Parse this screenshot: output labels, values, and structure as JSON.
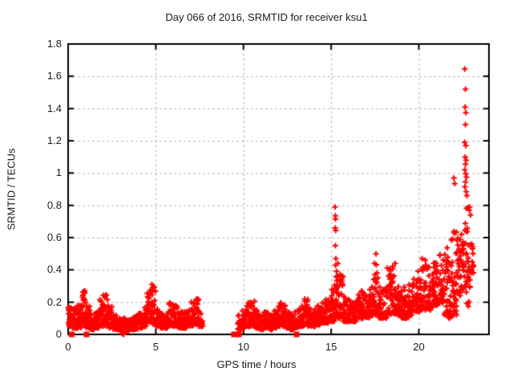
{
  "chart_data": {
    "type": "scatter",
    "title": "Day 066 of 2016, SRMTID for receiver ksu1",
    "xlabel": "GPS time / hours",
    "ylabel": "SRMTID / TECUs",
    "xlim": [
      0,
      24
    ],
    "ylim": [
      0,
      1.8
    ],
    "xticks": [
      0,
      5,
      10,
      15,
      20
    ],
    "xtick_labels": [
      "0",
      "5",
      "10",
      "15",
      "20"
    ],
    "yticks": [
      0,
      0.2,
      0.4,
      0.6,
      0.8,
      1.0,
      1.2,
      1.4,
      1.6,
      1.8
    ],
    "ytick_labels": [
      "0",
      "0.2",
      "0.4",
      "0.6",
      "0.8",
      "1",
      "1.2",
      "1.4",
      "1.6",
      "1.8"
    ],
    "grid": "dashed",
    "legend": "none",
    "marker": "plus",
    "marker_color": "#ff0000",
    "grid_color": "#b4b4b4",
    "border_color": "#000000",
    "text_color": "#1a1a1a",
    "background": "#ffffff",
    "data_gap_hours": [
      7.6,
      9.7
    ],
    "envelope_bins_comment": "each bin: [hour_center, min_SRMTID, max_SRMTID, optional point_count] read from the scatter envelope",
    "envelope_bins": [
      [
        0.125,
        0.05,
        0.17
      ],
      [
        0.375,
        0.04,
        0.16
      ],
      [
        0.625,
        0.04,
        0.18
      ],
      [
        0.875,
        0.05,
        0.27
      ],
      [
        1.125,
        0.04,
        0.18
      ],
      [
        1.375,
        0.03,
        0.13
      ],
      [
        1.625,
        0.04,
        0.14
      ],
      [
        1.875,
        0.05,
        0.22
      ],
      [
        2.125,
        0.05,
        0.25
      ],
      [
        2.375,
        0.04,
        0.18
      ],
      [
        2.625,
        0.03,
        0.12
      ],
      [
        2.875,
        0.03,
        0.1
      ],
      [
        3.125,
        0.02,
        0.1
      ],
      [
        3.375,
        0.02,
        0.09
      ],
      [
        3.625,
        0.03,
        0.1
      ],
      [
        3.875,
        0.03,
        0.11
      ],
      [
        4.125,
        0.04,
        0.13
      ],
      [
        4.375,
        0.05,
        0.17
      ],
      [
        4.625,
        0.07,
        0.28
      ],
      [
        4.875,
        0.06,
        0.3
      ],
      [
        5.125,
        0.05,
        0.16
      ],
      [
        5.375,
        0.04,
        0.13
      ],
      [
        5.625,
        0.04,
        0.14
      ],
      [
        5.875,
        0.05,
        0.2
      ],
      [
        6.125,
        0.05,
        0.18
      ],
      [
        6.375,
        0.04,
        0.14
      ],
      [
        6.625,
        0.04,
        0.14
      ],
      [
        6.875,
        0.05,
        0.15
      ],
      [
        7.125,
        0.05,
        0.2
      ],
      [
        7.375,
        0.06,
        0.22
      ],
      [
        7.55,
        0.05,
        0.13,
        14
      ],
      [
        9.8,
        0.03,
        0.12,
        18
      ],
      [
        10.05,
        0.04,
        0.15
      ],
      [
        10.3,
        0.05,
        0.2
      ],
      [
        10.55,
        0.05,
        0.21
      ],
      [
        10.8,
        0.04,
        0.15
      ],
      [
        11.05,
        0.03,
        0.12
      ],
      [
        11.3,
        0.04,
        0.14
      ],
      [
        11.55,
        0.03,
        0.12
      ],
      [
        11.8,
        0.04,
        0.15
      ],
      [
        12.05,
        0.05,
        0.2
      ],
      [
        12.3,
        0.05,
        0.18
      ],
      [
        12.55,
        0.04,
        0.14
      ],
      [
        12.8,
        0.03,
        0.12
      ],
      [
        13.05,
        0.04,
        0.15
      ],
      [
        13.3,
        0.05,
        0.18
      ],
      [
        13.55,
        0.06,
        0.22
      ],
      [
        13.8,
        0.05,
        0.16
      ],
      [
        14.05,
        0.05,
        0.16
      ],
      [
        14.3,
        0.06,
        0.18
      ],
      [
        14.55,
        0.07,
        0.2
      ],
      [
        14.8,
        0.07,
        0.22
      ],
      [
        15.05,
        0.08,
        0.28
      ],
      [
        15.3,
        0.1,
        0.45,
        30
      ],
      [
        15.55,
        0.1,
        0.38
      ],
      [
        15.8,
        0.08,
        0.24
      ],
      [
        16.05,
        0.08,
        0.22
      ],
      [
        16.3,
        0.08,
        0.2
      ],
      [
        16.55,
        0.1,
        0.25
      ],
      [
        16.8,
        0.1,
        0.27
      ],
      [
        17.05,
        0.1,
        0.25
      ],
      [
        17.3,
        0.11,
        0.3
      ],
      [
        17.55,
        0.12,
        0.45
      ],
      [
        17.8,
        0.1,
        0.3
      ],
      [
        18.05,
        0.1,
        0.28
      ],
      [
        18.3,
        0.12,
        0.42
      ],
      [
        18.55,
        0.12,
        0.45
      ],
      [
        18.8,
        0.12,
        0.3
      ],
      [
        19.05,
        0.1,
        0.3
      ],
      [
        19.3,
        0.1,
        0.28
      ],
      [
        19.55,
        0.12,
        0.32
      ],
      [
        19.8,
        0.14,
        0.35
      ],
      [
        20.05,
        0.14,
        0.4
      ],
      [
        20.3,
        0.15,
        0.48
      ],
      [
        20.55,
        0.15,
        0.42
      ],
      [
        20.8,
        0.17,
        0.45
      ],
      [
        21.05,
        0.18,
        0.45
      ],
      [
        21.3,
        0.19,
        0.5
      ],
      [
        21.55,
        0.12,
        0.55
      ],
      [
        21.8,
        0.1,
        0.6
      ],
      [
        22.05,
        0.12,
        0.65
      ],
      [
        22.3,
        0.24,
        0.6
      ],
      [
        22.55,
        0.28,
        0.7
      ],
      [
        22.8,
        0.17,
        0.8,
        30
      ],
      [
        23.0,
        0.38,
        0.56,
        14
      ]
    ],
    "outlier_points": [
      [
        0.95,
        0.27
      ],
      [
        4.78,
        0.31
      ],
      [
        15.22,
        0.79
      ],
      [
        15.24,
        0.735
      ],
      [
        15.25,
        0.715
      ],
      [
        15.23,
        0.66
      ],
      [
        15.26,
        0.645
      ],
      [
        15.24,
        0.55
      ],
      [
        15.27,
        0.47
      ],
      [
        17.56,
        0.5
      ],
      [
        22.0,
        0.97
      ],
      [
        22.05,
        0.935
      ],
      [
        22.62,
        1.645
      ],
      [
        22.66,
        1.52
      ],
      [
        22.64,
        1.41
      ],
      [
        22.68,
        1.375
      ],
      [
        22.66,
        1.3
      ],
      [
        22.62,
        1.19
      ],
      [
        22.68,
        1.17
      ],
      [
        22.64,
        1.1
      ],
      [
        22.7,
        1.08
      ],
      [
        22.66,
        1.055
      ],
      [
        22.62,
        1.02
      ],
      [
        22.68,
        0.995
      ],
      [
        22.72,
        0.975
      ],
      [
        22.66,
        0.945
      ],
      [
        22.63,
        0.915
      ],
      [
        22.7,
        0.885
      ],
      [
        22.74,
        0.86
      ],
      [
        22.9,
        0.79
      ],
      [
        22.95,
        0.74
      ],
      [
        23.02,
        0.56
      ],
      [
        23.06,
        0.53
      ]
    ],
    "zero_square_hours": [
      0.2,
      1.05,
      9.46,
      9.74,
      13.03
    ],
    "zero_plus_points": [
      [
        3.08,
        0.005
      ],
      [
        3.17,
        0.0
      ]
    ]
  }
}
